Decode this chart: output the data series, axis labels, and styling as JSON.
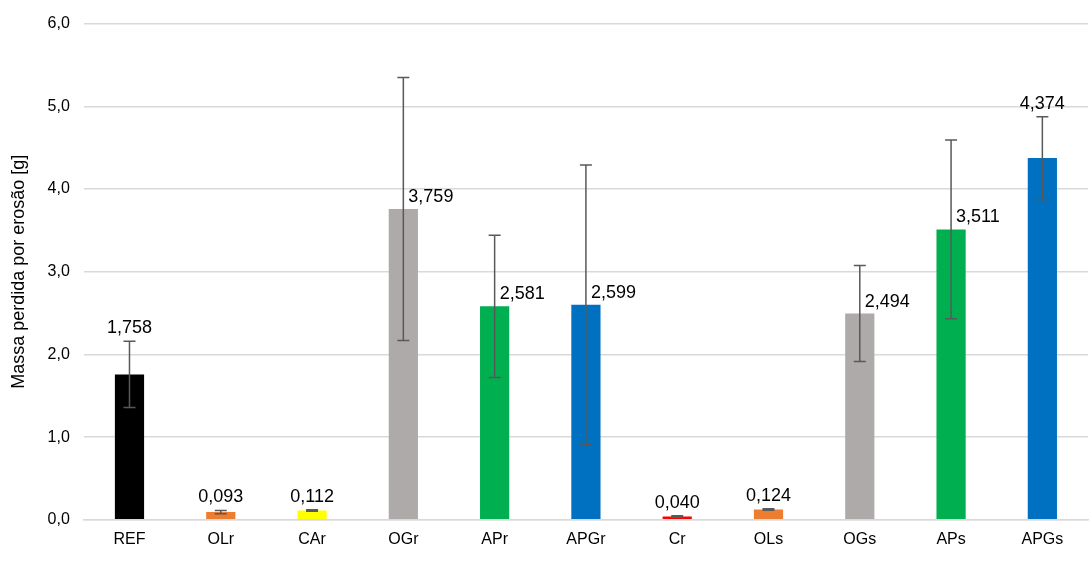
{
  "chart_data": {
    "type": "bar",
    "ylabel": "Massa perdida por erosão [g]",
    "categories": [
      "REF",
      "OLr",
      "CAr",
      "OGr",
      "APr",
      "APGr",
      "Cr",
      "OLs",
      "OGs",
      "APs",
      "APGs"
    ],
    "values": [
      1.758,
      0.093,
      0.112,
      3.759,
      2.581,
      2.599,
      0.04,
      0.124,
      2.494,
      3.511,
      4.374
    ],
    "value_labels": [
      "1,758",
      "0,093",
      "0,112",
      "3,759",
      "2,581",
      "2,599",
      "0,040",
      "0,124",
      "2,494",
      "3,511",
      "4,374"
    ],
    "errors": [
      0.4,
      0.02,
      0.01,
      1.59,
      0.86,
      1.69,
      0.01,
      0.01,
      0.58,
      1.08,
      0.5
    ],
    "colors": [
      "#000000",
      "#ed7d31",
      "#ffff00",
      "#aeaaaa",
      "#00b050",
      "#0070c0",
      "#ff0000",
      "#ed7d31",
      "#aeaaaa",
      "#00b050",
      "#0070c0"
    ],
    "ylim": [
      0,
      6
    ],
    "yticks": [
      {
        "value": 0,
        "label": "0,0"
      },
      {
        "value": 1,
        "label": "1,0"
      },
      {
        "value": 2,
        "label": "2,0"
      },
      {
        "value": 3,
        "label": "3,0"
      },
      {
        "value": 4,
        "label": "4,0"
      },
      {
        "value": 5,
        "label": "5,0"
      },
      {
        "value": 6,
        "label": "6,0"
      }
    ],
    "grid": "y",
    "legend": false
  }
}
